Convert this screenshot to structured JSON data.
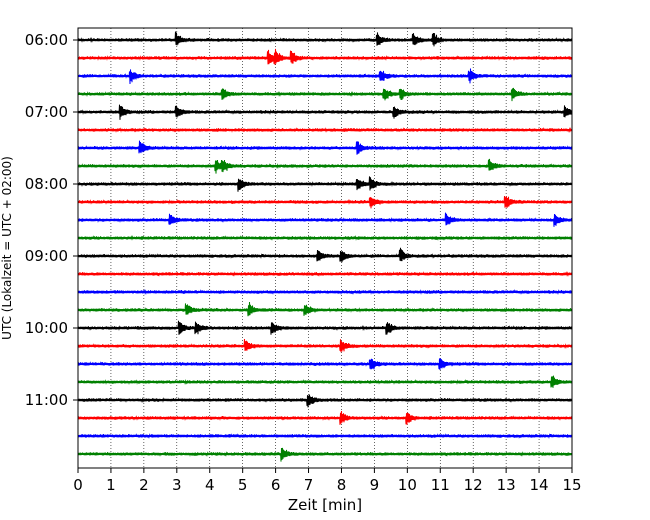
{
  "chart_data": {
    "type": "line",
    "title": "",
    "xlabel": "Zeit  [min]",
    "ylabel": "UTC (Lokalzeit = UTC + 02:00)",
    "xlim": [
      0,
      15
    ],
    "x_ticks": [
      0,
      1,
      2,
      3,
      4,
      5,
      6,
      7,
      8,
      9,
      10,
      11,
      12,
      13,
      14,
      15
    ],
    "y_tick_labels": [
      "06:00",
      "07:00",
      "08:00",
      "09:00",
      "10:00",
      "11:00"
    ],
    "trace_interval_min": 15,
    "grid": "vertical dotted",
    "color_cycle": [
      "#000000",
      "#ff0000",
      "#0000ff",
      "#008000"
    ],
    "traces": [
      {
        "start": "06:00",
        "events": [
          3.0,
          9.1,
          10.2,
          10.8
        ]
      },
      {
        "start": "06:15",
        "events": [
          5.8,
          6.0,
          6.5
        ]
      },
      {
        "start": "06:30",
        "events": [
          1.6,
          9.2,
          11.9
        ]
      },
      {
        "start": "06:45",
        "events": [
          4.4,
          9.3,
          9.8,
          13.2
        ]
      },
      {
        "start": "07:00",
        "events": [
          1.3,
          3.0,
          9.6,
          14.8
        ]
      },
      {
        "start": "07:15",
        "events": []
      },
      {
        "start": "07:30",
        "events": [
          1.9,
          8.5
        ]
      },
      {
        "start": "07:45",
        "events": [
          4.2,
          4.4,
          12.5
        ]
      },
      {
        "start": "08:00",
        "events": [
          4.9,
          8.5,
          8.9
        ]
      },
      {
        "start": "08:15",
        "events": [
          8.9,
          13.0
        ]
      },
      {
        "start": "08:30",
        "events": [
          2.8,
          11.2,
          14.5
        ]
      },
      {
        "start": "08:45",
        "events": []
      },
      {
        "start": "09:00",
        "events": [
          7.3,
          8.0,
          9.8
        ]
      },
      {
        "start": "09:15",
        "events": []
      },
      {
        "start": "09:30",
        "events": []
      },
      {
        "start": "09:45",
        "events": [
          3.3,
          5.2,
          6.9
        ]
      },
      {
        "start": "10:00",
        "events": [
          3.1,
          3.6,
          5.9,
          9.4
        ]
      },
      {
        "start": "10:15",
        "events": [
          5.1,
          8.0
        ]
      },
      {
        "start": "10:30",
        "events": [
          8.9,
          11.0
        ]
      },
      {
        "start": "10:45",
        "events": [
          14.4
        ]
      },
      {
        "start": "11:00",
        "events": [
          7.0
        ]
      },
      {
        "start": "11:15",
        "events": [
          8.0,
          10.0
        ]
      },
      {
        "start": "11:30",
        "events": []
      },
      {
        "start": "11:45",
        "events": [
          6.2
        ]
      }
    ]
  }
}
